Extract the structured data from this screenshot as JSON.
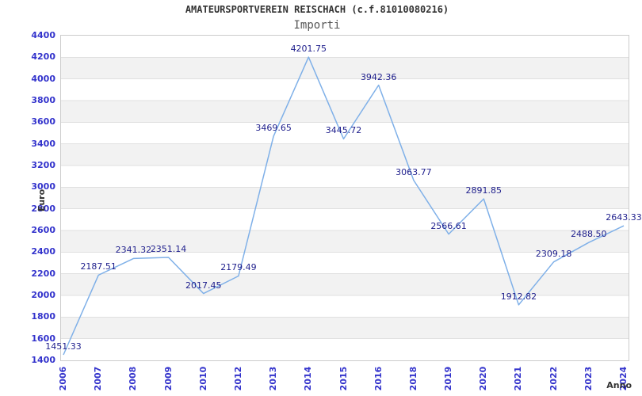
{
  "chart_data": {
    "type": "line",
    "title": "AMATEURSPORTVEREIN REISCHACH (c.f.81010080216)",
    "subtitle": "Importi",
    "xlabel": "Anno",
    "ylabel": "Euro",
    "categories": [
      "2006",
      "2007",
      "2008",
      "2009",
      "2010",
      "2012",
      "2013",
      "2014",
      "2015",
      "2016",
      "2018",
      "2019",
      "2020",
      "2021",
      "2022",
      "2023",
      "2024"
    ],
    "values": [
      1451.33,
      2187.51,
      2341.32,
      2351.14,
      2017.45,
      2179.49,
      3469.65,
      4201.75,
      3445.72,
      3942.36,
      3063.77,
      2566.61,
      2891.85,
      1912.82,
      2309.18,
      2488.5,
      2643.33
    ],
    "value_labels": [
      "1451.33",
      "2187.51",
      "2341.32",
      "2351.14",
      "2017.45",
      "2179.49",
      "3469.65",
      "4201.75",
      "3445.72",
      "3942.36",
      "3063.77",
      "2566.61",
      "2891.85",
      "1912.82",
      "2309.18",
      "2488.50",
      "2643.33"
    ],
    "ytick_labels": [
      "1400",
      "1600",
      "1800",
      "2000",
      "2200",
      "2400",
      "2600",
      "2800",
      "3000",
      "3200",
      "3400",
      "3600",
      "3800",
      "4000",
      "4200",
      "4400"
    ],
    "ylim": [
      1400,
      4400
    ],
    "ytick_step": 200,
    "grid": true,
    "legend": "none",
    "band_fill": "alternating horizontal",
    "colors": {
      "line": "#7fb0e8",
      "tick_label": "#3333cc",
      "data_label": "#1e1e8c",
      "title": "#333333",
      "subtitle": "#555555",
      "axis_title": "#333333",
      "band": "#f2f2f2",
      "gridline": "#e0e0e0",
      "border": "#cccccc"
    }
  }
}
